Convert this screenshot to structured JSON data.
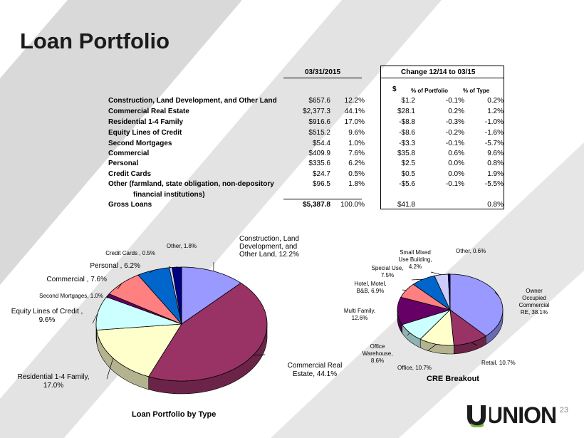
{
  "slide": {
    "title": "Loan Portfolio",
    "page_number": "23",
    "logo_text": "UNION"
  },
  "table": {
    "header_date": "03/31/2015",
    "header_change": "Change 12/14 to 03/15",
    "sub_dollar": "$",
    "sub_pop": "% of Portfolio",
    "sub_pot": "% of Type",
    "rows": [
      {
        "label": "Construction, Land Development, and Other Land",
        "amount": "$657.6",
        "pct": "12.2%",
        "chg": "$1.2",
        "pop": "-0.1%",
        "pot": "0.2%"
      },
      {
        "label": "Commercial Real Estate",
        "amount": "$2,377.3",
        "pct": "44.1%",
        "chg": "$28.1",
        "pop": "0.2%",
        "pot": "1.2%"
      },
      {
        "label": "Residential 1-4 Family",
        "amount": "$916.6",
        "pct": "17.0%",
        "chg": "-$8.8",
        "pop": "-0.3%",
        "pot": "-1.0%"
      },
      {
        "label": "Equity Lines of Credit",
        "amount": "$515.2",
        "pct": "9.6%",
        "chg": "-$8.6",
        "pop": "-0.2%",
        "pot": "-1.6%"
      },
      {
        "label": "Second Mortgages",
        "amount": "$54.4",
        "pct": "1.0%",
        "chg": "-$3.3",
        "pop": "-0.1%",
        "pot": "-5.7%"
      },
      {
        "label": "Commercial",
        "amount": "$409.9",
        "pct": "7.6%",
        "chg": "$35.8",
        "pop": "0.6%",
        "pot": "9.6%"
      },
      {
        "label": "Personal",
        "amount": "$335.6",
        "pct": "6.2%",
        "chg": "$2.5",
        "pop": "0.0%",
        "pot": "0.8%"
      },
      {
        "label": "Credit Cards",
        "amount": "$24.7",
        "pct": "0.5%",
        "chg": "$0.5",
        "pop": "0.0%",
        "pot": "1.9%"
      },
      {
        "label": "Other (farmland, state obligation, non-depository",
        "label2": "financial institutions)",
        "amount": "$96.5",
        "pct": "1.8%",
        "chg": "-$5.6",
        "pop": "-0.1%",
        "pot": "-5.5%"
      }
    ],
    "total": {
      "label": "Gross Loans",
      "amount": "$5,387.8",
      "pct": "100.0%",
      "chg": "$41.8",
      "pot": "0.8%"
    }
  },
  "chart_data": [
    {
      "type": "pie",
      "title": "Loan Portfolio by Type",
      "slices": [
        {
          "label": "Construction, Land Development, and Other Land",
          "display": [
            "Construction, Land",
            "Development, and",
            "Other Land, 12.2%"
          ],
          "value": 12.2,
          "color": "#9999ff"
        },
        {
          "label": "Commercial Real Estate",
          "display": [
            "Commercial Real",
            "Estate, 44.1%"
          ],
          "value": 44.1,
          "color": "#993366"
        },
        {
          "label": "Residential 1-4 Family",
          "display": [
            "Residential 1-4 Family,",
            "17.0%"
          ],
          "value": 17.0,
          "color": "#ffffcc"
        },
        {
          "label": "Equity Lines of Credit",
          "display": [
            "Equity Lines of Credit ,",
            "9.6%"
          ],
          "value": 9.6,
          "color": "#ccffff"
        },
        {
          "label": "Second Mortgages",
          "display": [
            "Second Mortgages, 1.0%"
          ],
          "value": 1.0,
          "color": "#660066"
        },
        {
          "label": "Commercial",
          "display": [
            "Commercial  , 7.6%"
          ],
          "value": 7.6,
          "color": "#ff8080"
        },
        {
          "label": "Personal",
          "display": [
            "Personal , 6.2%"
          ],
          "value": 6.2,
          "color": "#0066cc"
        },
        {
          "label": "Credit Cards",
          "display": [
            "Credit Cards , 0.5%"
          ],
          "value": 0.5,
          "color": "#ccccff"
        },
        {
          "label": "Other",
          "display": [
            "Other, 1.8%"
          ],
          "value": 1.8,
          "color": "#000080"
        }
      ]
    },
    {
      "type": "pie",
      "title": "CRE Breakout",
      "slices": [
        {
          "label": "Owner Occupied Commercial RE",
          "display": [
            "Owner",
            "Occupied",
            "Commercial",
            "RE, 38.1%"
          ],
          "value": 38.1,
          "color": "#9999ff"
        },
        {
          "label": "Retail",
          "display": [
            "Retail, 10.7%"
          ],
          "value": 10.7,
          "color": "#993366"
        },
        {
          "label": "Office",
          "display": [
            "Office, 10.7%"
          ],
          "value": 10.7,
          "color": "#ffffcc"
        },
        {
          "label": "Office Warehouse",
          "display": [
            "Office",
            "Warehouse,",
            "8.6%"
          ],
          "value": 8.6,
          "color": "#ccffff"
        },
        {
          "label": "Multi Family",
          "display": [
            "Multi Family,",
            "12.6%"
          ],
          "value": 12.6,
          "color": "#660066"
        },
        {
          "label": "Hotel, Motel, B&B",
          "display": [
            "Hotel, Motel,",
            "B&B, 6.9%"
          ],
          "value": 6.9,
          "color": "#ff8080"
        },
        {
          "label": "Special Use",
          "display": [
            "Special Use,",
            "7.5%"
          ],
          "value": 7.5,
          "color": "#0066cc"
        },
        {
          "label": "Small Mixed Use Building",
          "display": [
            "Small Mixed",
            "Use Building,",
            "4.2%"
          ],
          "value": 4.2,
          "color": "#ccccff"
        },
        {
          "label": "Other",
          "display": [
            "Other, 0.6%"
          ],
          "value": 0.6,
          "color": "#000080"
        }
      ]
    }
  ]
}
